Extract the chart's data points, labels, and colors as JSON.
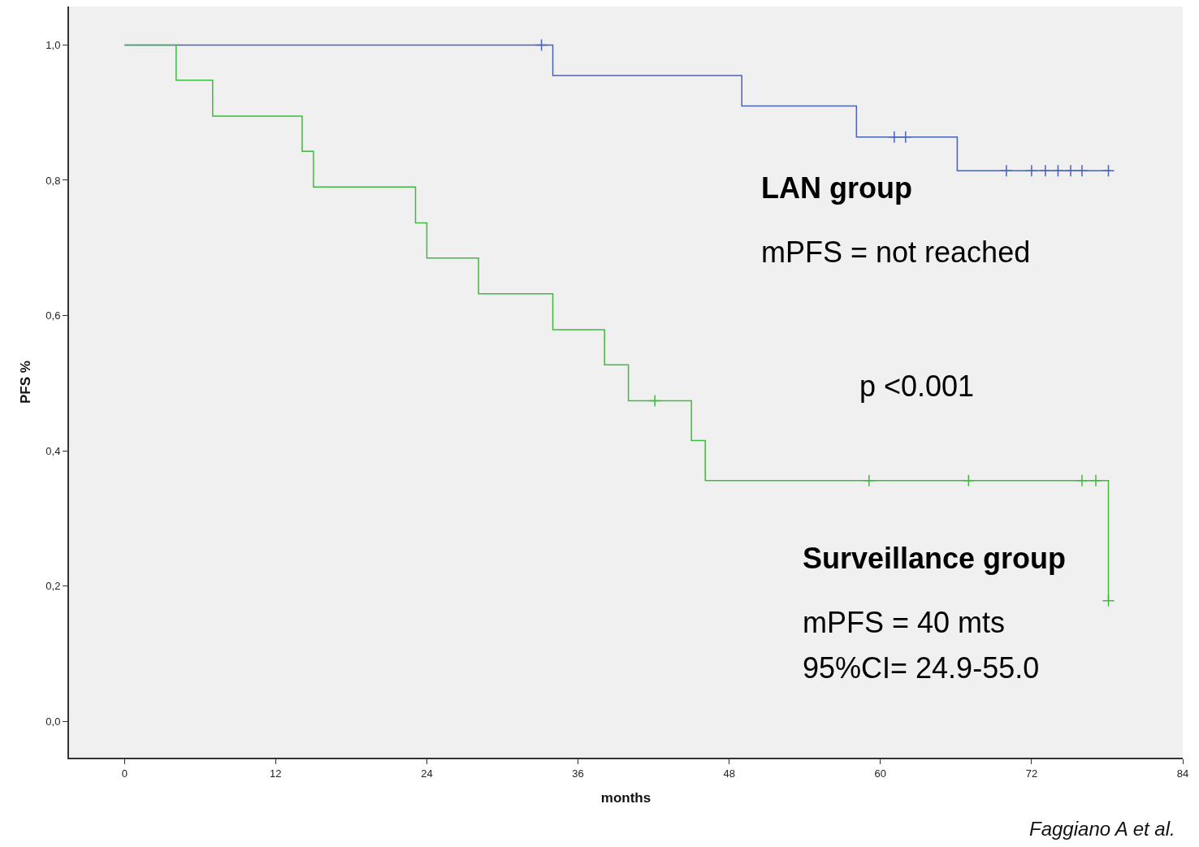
{
  "chart_data": {
    "type": "step",
    "xlabel": "months",
    "ylabel": "PFS %",
    "xlim": [
      -4.4,
      84
    ],
    "xticks": [
      0,
      12,
      24,
      36,
      48,
      60,
      72,
      84
    ],
    "ylim": [
      -0.054,
      1.057
    ],
    "yticks": [
      {
        "value": 0,
        "label": "0,0"
      },
      {
        "value": 0.2,
        "label": "0,2"
      },
      {
        "value": 0.4,
        "label": "0,4"
      },
      {
        "value": 0.6,
        "label": "0,6"
      },
      {
        "value": 0.8,
        "label": "0,8"
      },
      {
        "value": 1,
        "label": "1,0"
      }
    ],
    "series": [
      {
        "color": "#4a62b3",
        "marker": "none",
        "x": [
          0,
          34.0,
          49.0,
          58.1,
          66.1,
          78.3
        ],
        "values": [
          1,
          0.955,
          0.91,
          0.864,
          0.814,
          0.814
        ]
      },
      {
        "color": "#40b940",
        "marker": "none",
        "x": [
          0,
          4.1,
          7.0,
          14.1,
          15.0,
          23.1,
          24.0,
          28.1,
          34.0,
          38.1,
          40.0,
          45.0,
          46.1,
          78.1
        ],
        "values": [
          1,
          0.948,
          0.895,
          0.843,
          0.79,
          0.737,
          0.685,
          0.632,
          0.579,
          0.527,
          0.474,
          0.415,
          0.356,
          0.178
        ]
      },
      {
        "type": "scatter",
        "color": "#4a62b3",
        "marker": "cross",
        "x": [
          33.1,
          61.1,
          62.0,
          70.0,
          72.0,
          73.1,
          74.1,
          75.1,
          76.0,
          78.1
        ],
        "values": [
          1,
          0.864,
          0.864,
          0.814,
          0.814,
          0.814,
          0.814,
          0.814,
          0.814,
          0.814
        ]
      },
      {
        "type": "scatter",
        "color": "#40b940",
        "marker": "cross",
        "x": [
          42.1,
          59.1,
          67.0,
          76.0,
          77.1,
          78.1
        ],
        "values": [
          0.474,
          0.356,
          0.356,
          0.356,
          0.356,
          0.178
        ]
      }
    ],
    "annotations": [
      "LAN group",
      "mPFS = not reached",
      "p <0.001",
      "Surveillance group",
      "mPFS = 40 mts",
      "95%CI= 24.9-55.0",
      "Faggiano A et al."
    ],
    "grid": false
  }
}
